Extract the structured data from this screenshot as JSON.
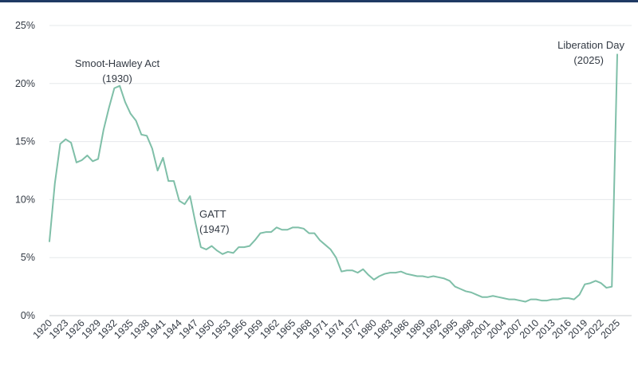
{
  "chart_data": {
    "type": "line",
    "title": "",
    "xlabel": "",
    "ylabel": "",
    "ylim": [
      0,
      25
    ],
    "xlim": [
      1920,
      2025
    ],
    "grid": true,
    "y_ticks": [
      0,
      5,
      10,
      15,
      20,
      25
    ],
    "y_tick_labels": [
      "0%",
      "5%",
      "10%",
      "15%",
      "20%",
      "25%"
    ],
    "x_ticks": [
      1920,
      1923,
      1926,
      1929,
      1932,
      1935,
      1938,
      1941,
      1944,
      1947,
      1950,
      1953,
      1956,
      1959,
      1962,
      1965,
      1968,
      1971,
      1974,
      1977,
      1980,
      1983,
      1986,
      1989,
      1992,
      1995,
      1998,
      2001,
      2004,
      2007,
      2010,
      2013,
      2016,
      2019,
      2022,
      2025
    ],
    "line_color": "#7fbfa8",
    "series": [
      {
        "x": [
          1920,
          1921,
          1922,
          1923,
          1924,
          1925,
          1926,
          1927,
          1928,
          1929,
          1930,
          1931,
          1932,
          1933,
          1934,
          1935,
          1936,
          1937,
          1938,
          1939,
          1940,
          1941,
          1942,
          1943,
          1944,
          1945,
          1946,
          1947,
          1948,
          1949,
          1950,
          1951,
          1952,
          1953,
          1954,
          1955,
          1956,
          1957,
          1958,
          1959,
          1960,
          1961,
          1962,
          1963,
          1964,
          1965,
          1966,
          1967,
          1968,
          1969,
          1970,
          1971,
          1972,
          1973,
          1974,
          1975,
          1976,
          1977,
          1978,
          1979,
          1980,
          1981,
          1982,
          1983,
          1984,
          1985,
          1986,
          1987,
          1988,
          1989,
          1990,
          1991,
          1992,
          1993,
          1994,
          1995,
          1996,
          1997,
          1998,
          1999,
          2000,
          2001,
          2002,
          2003,
          2004,
          2005,
          2006,
          2007,
          2008,
          2009,
          2010,
          2011,
          2012,
          2013,
          2014,
          2015,
          2016,
          2017,
          2018,
          2019,
          2020,
          2021,
          2022,
          2023,
          2024,
          2025
        ],
        "values": [
          6.4,
          11.4,
          14.8,
          15.2,
          14.9,
          13.2,
          13.4,
          13.8,
          13.3,
          13.5,
          16.0,
          17.9,
          19.6,
          19.8,
          18.4,
          17.4,
          16.8,
          15.6,
          15.5,
          14.4,
          12.5,
          13.6,
          11.6,
          11.6,
          9.9,
          9.6,
          10.3,
          8.0,
          5.9,
          5.7,
          6.0,
          5.6,
          5.3,
          5.5,
          5.4,
          5.9,
          5.9,
          6.0,
          6.5,
          7.1,
          7.2,
          7.2,
          7.6,
          7.4,
          7.4,
          7.6,
          7.6,
          7.5,
          7.1,
          7.1,
          6.5,
          6.1,
          5.7,
          5.0,
          3.8,
          3.9,
          3.9,
          3.7,
          4.0,
          3.5,
          3.1,
          3.4,
          3.6,
          3.7,
          3.7,
          3.8,
          3.6,
          3.5,
          3.4,
          3.4,
          3.3,
          3.4,
          3.3,
          3.2,
          3.0,
          2.5,
          2.3,
          2.1,
          2.0,
          1.8,
          1.6,
          1.6,
          1.7,
          1.6,
          1.5,
          1.4,
          1.4,
          1.3,
          1.2,
          1.4,
          1.4,
          1.3,
          1.3,
          1.4,
          1.4,
          1.5,
          1.5,
          1.4,
          1.8,
          2.7,
          2.8,
          3.0,
          2.8,
          2.4,
          2.5,
          22.5
        ]
      }
    ],
    "annotations": [
      {
        "line1": "Smoot-Hawley Act",
        "line2": "(1930)"
      },
      {
        "line1": "GATT",
        "line2": "(1947)"
      },
      {
        "line1": "Liberation Day",
        "line2": "(2025)"
      }
    ]
  }
}
